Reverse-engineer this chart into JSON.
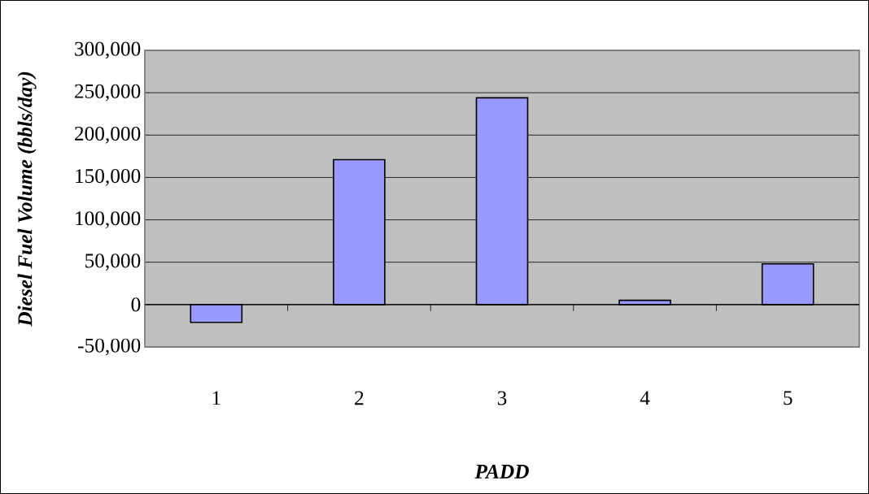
{
  "chart_data": {
    "type": "bar",
    "xlabel": "PADD",
    "ylabel": "Diesel Fuel Volume (bbls/day)",
    "categories": [
      "1",
      "2",
      "3",
      "4",
      "5"
    ],
    "values": [
      -21000,
      171000,
      244000,
      5000,
      48000
    ],
    "color": "#9999ff",
    "ylim": [
      -50000,
      300000
    ],
    "yticks": [
      {
        "value": -50000,
        "label": "-50,000"
      },
      {
        "value": 0,
        "label": "0"
      },
      {
        "value": 50000,
        "label": "50,000"
      },
      {
        "value": 100000,
        "label": "100,000"
      },
      {
        "value": 150000,
        "label": "150,000"
      },
      {
        "value": 200000,
        "label": "200,000"
      },
      {
        "value": 250000,
        "label": "250,000"
      },
      {
        "value": 300000,
        "label": "300,000"
      }
    ],
    "grid": "y"
  }
}
